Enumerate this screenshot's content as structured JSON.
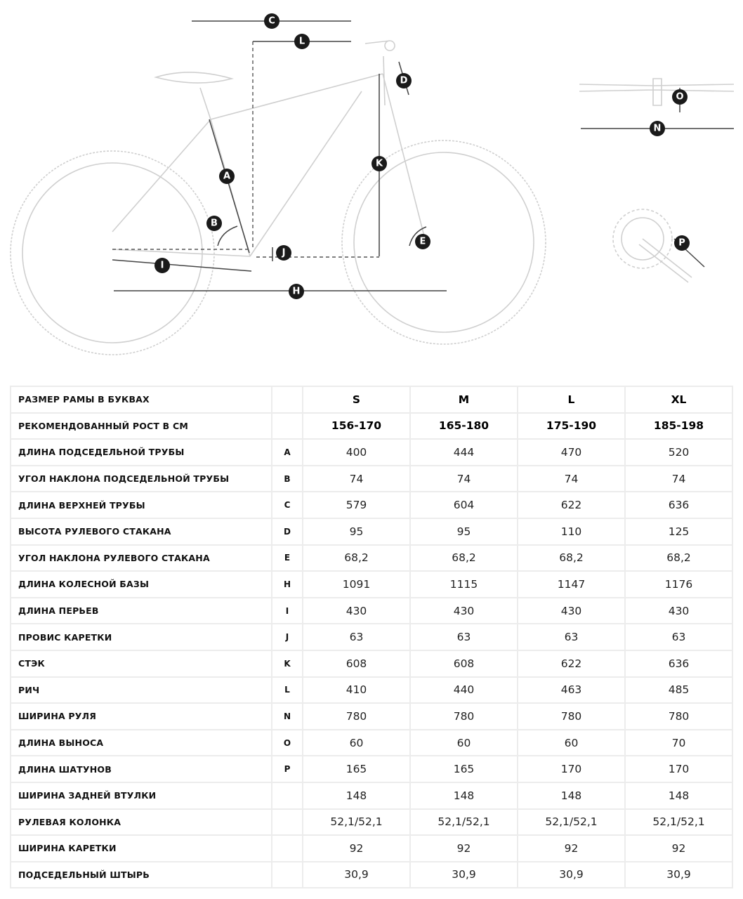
{
  "diagram": {
    "markers": [
      "A",
      "B",
      "C",
      "D",
      "E",
      "H",
      "I",
      "J",
      "K",
      "L",
      "N",
      "O",
      "P"
    ]
  },
  "table": {
    "rows": [
      {
        "label": "РАЗМЕР РАМЫ В БУКВАХ",
        "letter": "",
        "values": [
          "S",
          "M",
          "L",
          "XL"
        ]
      },
      {
        "label": "РЕКОМЕНДОВАННЫЙ РОСТ В СМ",
        "letter": "",
        "values": [
          "156-170",
          "165-180",
          "175-190",
          "185-198"
        ]
      },
      {
        "label": "ДЛИНА ПОДСЕДЕЛЬНОЙ ТРУБЫ",
        "letter": "A",
        "values": [
          "400",
          "444",
          "470",
          "520"
        ]
      },
      {
        "label": "УГОЛ НАКЛОНА ПОДСЕДЕЛЬНОЙ ТРУБЫ",
        "letter": "B",
        "values": [
          "74",
          "74",
          "74",
          "74"
        ]
      },
      {
        "label": "ДЛИНА ВЕРХНЕЙ ТРУБЫ",
        "letter": "C",
        "values": [
          "579",
          "604",
          "622",
          "636"
        ]
      },
      {
        "label": "ВЫСОТА РУЛЕВОГО СТАКАНА",
        "letter": "D",
        "values": [
          "95",
          "95",
          "110",
          "125"
        ]
      },
      {
        "label": "УГОЛ НАКЛОНА РУЛЕВОГО СТАКАНА",
        "letter": "E",
        "values": [
          "68,2",
          "68,2",
          "68,2",
          "68,2"
        ]
      },
      {
        "label": "ДЛИНА КОЛЕСНОЙ БАЗЫ",
        "letter": "H",
        "values": [
          "1091",
          "1115",
          "1147",
          "1176"
        ]
      },
      {
        "label": "ДЛИНА ПЕРЬЕВ",
        "letter": "I",
        "values": [
          "430",
          "430",
          "430",
          "430"
        ]
      },
      {
        "label": "ПРОВИС КАРЕТКИ",
        "letter": "J",
        "values": [
          "63",
          "63",
          "63",
          "63"
        ]
      },
      {
        "label": "СТЭК",
        "letter": "K",
        "values": [
          "608",
          "608",
          "622",
          "636"
        ]
      },
      {
        "label": "РИЧ",
        "letter": "L",
        "values": [
          "410",
          "440",
          "463",
          "485"
        ]
      },
      {
        "label": "ШИРИНА РУЛЯ",
        "letter": "N",
        "values": [
          "780",
          "780",
          "780",
          "780"
        ]
      },
      {
        "label": "ДЛИНА ВЫНОСА",
        "letter": "O",
        "values": [
          "60",
          "60",
          "60",
          "70"
        ]
      },
      {
        "label": "ДЛИНА ШАТУНОВ",
        "letter": "P",
        "values": [
          "165",
          "165",
          "170",
          "170"
        ]
      },
      {
        "label": "ШИРИНА ЗАДНЕЙ ВТУЛКИ",
        "letter": "",
        "values": [
          "148",
          "148",
          "148",
          "148"
        ]
      },
      {
        "label": "РУЛЕВАЯ КОЛОНКА",
        "letter": "",
        "values": [
          "52,1/52,1",
          "52,1/52,1",
          "52,1/52,1",
          "52,1/52,1"
        ]
      },
      {
        "label": "ШИРИНА КАРЕТКИ",
        "letter": "",
        "values": [
          "92",
          "92",
          "92",
          "92"
        ]
      },
      {
        "label": "ПОДСЕДЕЛЬНЫЙ ШТЫРЬ",
        "letter": "",
        "values": [
          "30,9",
          "30,9",
          "30,9",
          "30,9"
        ]
      }
    ]
  }
}
